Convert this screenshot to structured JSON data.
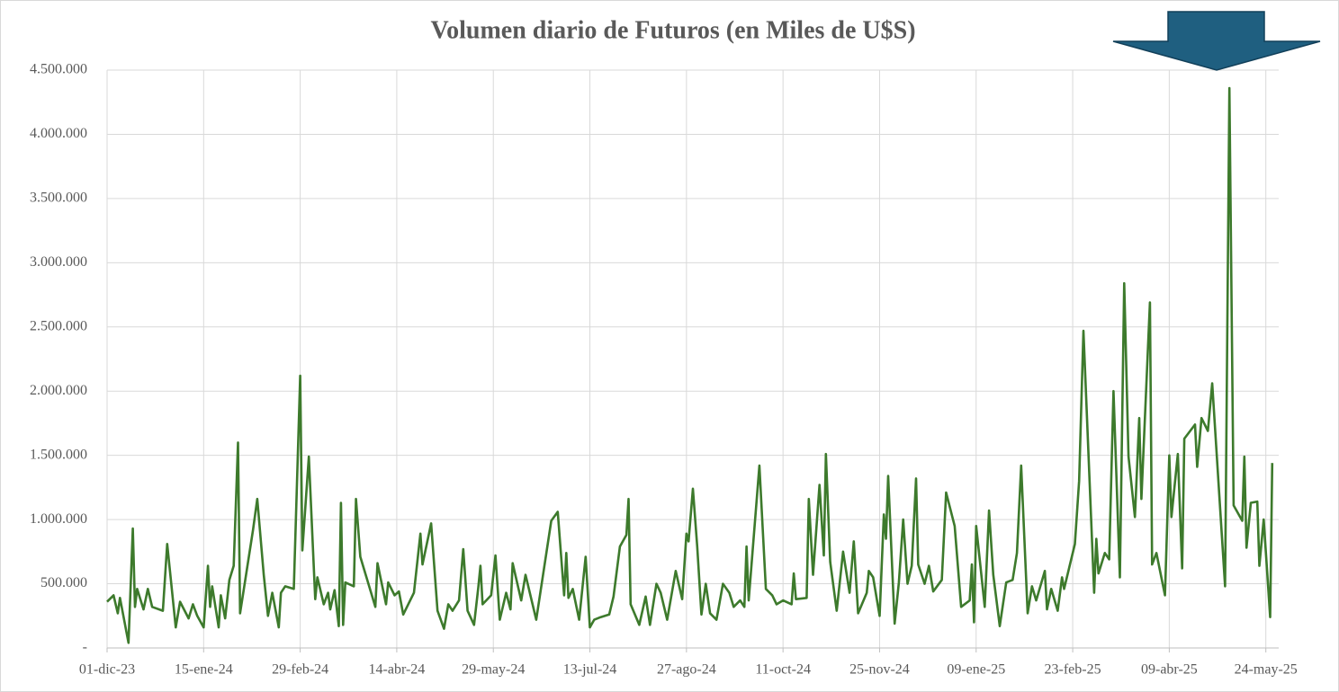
{
  "chart_data": {
    "type": "line",
    "title": "Volumen diario de Futuros (en Miles de U$S)",
    "x": [
      "2023-12-01",
      "2023-12-04",
      "2023-12-06",
      "2023-12-07",
      "2023-12-11",
      "2023-12-13",
      "2023-12-14",
      "2023-12-15",
      "2023-12-18",
      "2023-12-20",
      "2023-12-22",
      "2023-12-27",
      "2023-12-29",
      "2024-01-02",
      "2024-01-04",
      "2024-01-08",
      "2024-01-10",
      "2024-01-12",
      "2024-01-15",
      "2024-01-17",
      "2024-01-18",
      "2024-01-19",
      "2024-01-22",
      "2024-01-23",
      "2024-01-25",
      "2024-01-27",
      "2024-01-29",
      "2024-01-31",
      "2024-02-01",
      "2024-02-07",
      "2024-02-09",
      "2024-02-12",
      "2024-02-14",
      "2024-02-16",
      "2024-02-19",
      "2024-02-20",
      "2024-02-22",
      "2024-02-26",
      "2024-02-29",
      "2024-03-01",
      "2024-03-04",
      "2024-03-07",
      "2024-03-08",
      "2024-03-11",
      "2024-03-13",
      "2024-03-14",
      "2024-03-16",
      "2024-03-18",
      "2024-03-19",
      "2024-03-20",
      "2024-03-21",
      "2024-03-25",
      "2024-03-26",
      "2024-03-28",
      "2024-04-04",
      "2024-04-05",
      "2024-04-09",
      "2024-04-10",
      "2024-04-13",
      "2024-04-15",
      "2024-04-17",
      "2024-04-22",
      "2024-04-25",
      "2024-04-26",
      "2024-04-30",
      "2024-05-03",
      "2024-05-06",
      "2024-05-08",
      "2024-05-10",
      "2024-05-13",
      "2024-05-15",
      "2024-05-17",
      "2024-05-20",
      "2024-05-22",
      "2024-05-23",
      "2024-05-24",
      "2024-05-28",
      "2024-05-30",
      "2024-06-01",
      "2024-06-04",
      "2024-06-06",
      "2024-06-07",
      "2024-06-11",
      "2024-06-13",
      "2024-06-18",
      "2024-06-25",
      "2024-06-28",
      "2024-07-01",
      "2024-07-02",
      "2024-07-03",
      "2024-07-05",
      "2024-07-08",
      "2024-07-11",
      "2024-07-13",
      "2024-07-15",
      "2024-07-18",
      "2024-07-22",
      "2024-07-24",
      "2024-07-27",
      "2024-07-30",
      "2024-07-31",
      "2024-08-01",
      "2024-08-05",
      "2024-08-08",
      "2024-08-10",
      "2024-08-13",
      "2024-08-15",
      "2024-08-18",
      "2024-08-22",
      "2024-08-25",
      "2024-08-27",
      "2024-08-28",
      "2024-08-30",
      "2024-09-01",
      "2024-09-03",
      "2024-09-05",
      "2024-09-07",
      "2024-09-10",
      "2024-09-13",
      "2024-09-16",
      "2024-09-18",
      "2024-09-21",
      "2024-09-23",
      "2024-09-24",
      "2024-09-25",
      "2024-09-30",
      "2024-10-03",
      "2024-10-06",
      "2024-10-08",
      "2024-10-11",
      "2024-10-15",
      "2024-10-16",
      "2024-10-17",
      "2024-10-22",
      "2024-10-23",
      "2024-10-25",
      "2024-10-28",
      "2024-10-30",
      "2024-10-31",
      "2024-11-02",
      "2024-11-05",
      "2024-11-08",
      "2024-11-11",
      "2024-11-13",
      "2024-11-15",
      "2024-11-19",
      "2024-11-20",
      "2024-11-22",
      "2024-11-25",
      "2024-11-27",
      "2024-11-28",
      "2024-11-29",
      "2024-12-01",
      "2024-12-02",
      "2024-12-04",
      "2024-12-06",
      "2024-12-08",
      "2024-12-10",
      "2024-12-12",
      "2024-12-13",
      "2024-12-16",
      "2024-12-18",
      "2024-12-20",
      "2024-12-24",
      "2024-12-26",
      "2024-12-30",
      "2025-01-02",
      "2025-01-06",
      "2025-01-07",
      "2025-01-08",
      "2025-01-09",
      "2025-01-11",
      "2025-01-13",
      "2025-01-15",
      "2025-01-17",
      "2025-01-20",
      "2025-01-23",
      "2025-01-26",
      "2025-01-28",
      "2025-01-30",
      "2025-02-02",
      "2025-02-04",
      "2025-02-06",
      "2025-02-10",
      "2025-02-11",
      "2025-02-13",
      "2025-02-16",
      "2025-02-18",
      "2025-02-19",
      "2025-02-24",
      "2025-02-26",
      "2025-02-28",
      "2025-03-05",
      "2025-03-06",
      "2025-03-07",
      "2025-03-10",
      "2025-03-12",
      "2025-03-14",
      "2025-03-17",
      "2025-03-19",
      "2025-03-21",
      "2025-03-24",
      "2025-03-26",
      "2025-03-27",
      "2025-03-31",
      "2025-04-01",
      "2025-04-03",
      "2025-04-07",
      "2025-04-09",
      "2025-04-10",
      "2025-04-13",
      "2025-04-15",
      "2025-04-16",
      "2025-04-21",
      "2025-04-22",
      "2025-04-24",
      "2025-04-27",
      "2025-04-29",
      "2025-05-05",
      "2025-05-07",
      "2025-05-09",
      "2025-05-13",
      "2025-05-14",
      "2025-05-15",
      "2025-05-17",
      "2025-05-20",
      "2025-05-21",
      "2025-05-23",
      "2025-05-26",
      "2025-05-27"
    ],
    "series": [
      {
        "color": "#3d7a2c",
        "values": [
          360000,
          410000,
          270000,
          390000,
          40000,
          930000,
          320000,
          460000,
          300000,
          460000,
          320000,
          290000,
          810000,
          160000,
          360000,
          230000,
          340000,
          250000,
          160000,
          640000,
          320000,
          480000,
          160000,
          410000,
          230000,
          530000,
          640000,
          1600000,
          270000,
          920000,
          1160000,
          570000,
          250000,
          430000,
          160000,
          430000,
          480000,
          460000,
          2120000,
          760000,
          1490000,
          380000,
          550000,
          340000,
          430000,
          300000,
          450000,
          170000,
          1130000,
          180000,
          510000,
          480000,
          1160000,
          710000,
          320000,
          660000,
          340000,
          510000,
          410000,
          440000,
          260000,
          430000,
          890000,
          650000,
          970000,
          290000,
          150000,
          340000,
          290000,
          370000,
          770000,
          290000,
          180000,
          470000,
          640000,
          340000,
          410000,
          720000,
          220000,
          430000,
          300000,
          660000,
          370000,
          570000,
          220000,
          990000,
          1060000,
          410000,
          740000,
          390000,
          460000,
          220000,
          710000,
          160000,
          220000,
          240000,
          260000,
          400000,
          790000,
          880000,
          1160000,
          340000,
          180000,
          400000,
          180000,
          500000,
          430000,
          220000,
          600000,
          380000,
          890000,
          830000,
          1240000,
          790000,
          260000,
          500000,
          270000,
          220000,
          500000,
          430000,
          320000,
          370000,
          320000,
          790000,
          370000,
          1420000,
          460000,
          410000,
          340000,
          370000,
          340000,
          580000,
          380000,
          390000,
          1160000,
          570000,
          1270000,
          720000,
          1510000,
          670000,
          290000,
          750000,
          430000,
          830000,
          270000,
          430000,
          600000,
          550000,
          250000,
          1040000,
          850000,
          1340000,
          570000,
          190000,
          510000,
          1000000,
          500000,
          640000,
          1320000,
          650000,
          500000,
          640000,
          440000,
          530000,
          1210000,
          950000,
          320000,
          370000,
          650000,
          200000,
          950000,
          640000,
          320000,
          1070000,
          570000,
          170000,
          510000,
          530000,
          740000,
          1420000,
          270000,
          480000,
          370000,
          600000,
          300000,
          460000,
          290000,
          550000,
          460000,
          810000,
          1300000,
          2470000,
          430000,
          850000,
          580000,
          740000,
          690000,
          2000000,
          550000,
          2840000,
          1490000,
          1020000,
          1790000,
          1160000,
          2690000,
          650000,
          740000,
          410000,
          1500000,
          1020000,
          1510000,
          620000,
          1630000,
          1740000,
          1410000,
          1790000,
          1690000,
          2060000,
          480000,
          4360000,
          1110000,
          990000,
          1490000,
          780000,
          1130000,
          1140000,
          640000,
          1000000,
          240000,
          1440000
        ]
      }
    ],
    "xlim": [
      "2023-12-01",
      "2025-05-30"
    ],
    "xticks": [
      {
        "value": "2023-12-01",
        "label": "01-dic-23"
      },
      {
        "value": "2024-01-15",
        "label": "15-ene-24"
      },
      {
        "value": "2024-02-29",
        "label": "29-feb-24"
      },
      {
        "value": "2024-04-14",
        "label": "14-abr-24"
      },
      {
        "value": "2024-05-29",
        "label": "29-may-24"
      },
      {
        "value": "2024-07-13",
        "label": "13-jul-24"
      },
      {
        "value": "2024-08-27",
        "label": "27-ago-24"
      },
      {
        "value": "2024-10-11",
        "label": "11-oct-24"
      },
      {
        "value": "2024-11-25",
        "label": "25-nov-24"
      },
      {
        "value": "2025-01-09",
        "label": "09-ene-25"
      },
      {
        "value": "2025-02-23",
        "label": "23-feb-25"
      },
      {
        "value": "2025-04-09",
        "label": "09-abr-25"
      },
      {
        "value": "2025-05-24",
        "label": "24-may-25"
      }
    ],
    "ylim": [
      0,
      4500000
    ],
    "yticks": [
      {
        "value": 0,
        "label": "-"
      },
      {
        "value": 500000,
        "label": "500.000"
      },
      {
        "value": 1000000,
        "label": "1.000.000"
      },
      {
        "value": 1500000,
        "label": "1.500.000"
      },
      {
        "value": 2000000,
        "label": "2.000.000"
      },
      {
        "value": 2500000,
        "label": "2.500.000"
      },
      {
        "value": 3000000,
        "label": "3.000.000"
      },
      {
        "value": 3500000,
        "label": "3.500.000"
      },
      {
        "value": 4000000,
        "label": "4.000.000"
      },
      {
        "value": 4500000,
        "label": "4.500.000"
      }
    ],
    "grid": true
  }
}
